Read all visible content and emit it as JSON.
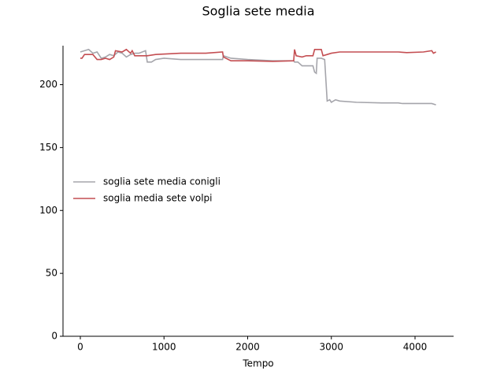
{
  "chart_data": {
    "type": "line",
    "title": "Soglia sete media",
    "xlabel": "Tempo",
    "xlim": [
      -207,
      4461
    ],
    "ylim": [
      0,
      231
    ],
    "xticks": [
      0,
      1000,
      2000,
      3000,
      4000
    ],
    "yticks": [
      0,
      50,
      100,
      150,
      200
    ],
    "legend": "center left",
    "series": [
      {
        "name": "soglia sete media conigli",
        "color": "#a5a5ab",
        "x": [
          0,
          100,
          150,
          200,
          250,
          300,
          350,
          400,
          450,
          500,
          550,
          600,
          650,
          700,
          780,
          800,
          850,
          900,
          1000,
          1200,
          1500,
          1700,
          1710,
          1800,
          2000,
          2300,
          2550,
          2560,
          2600,
          2650,
          2700,
          2780,
          2800,
          2820,
          2830,
          2880,
          2920,
          2950,
          2980,
          3000,
          3050,
          3100,
          3300,
          3600,
          3800,
          3850,
          4200,
          4250
        ],
        "values": [
          226,
          228,
          225,
          226,
          221,
          222,
          224,
          223,
          226,
          225,
          222,
          224,
          225,
          225,
          227,
          218,
          218,
          220,
          221,
          220,
          220,
          220,
          223,
          221,
          220,
          219,
          219,
          218,
          218,
          215,
          215,
          215,
          210,
          209,
          221,
          221,
          220,
          187,
          188,
          186,
          188,
          187,
          186,
          185.5,
          185.5,
          185,
          185,
          184
        ]
      },
      {
        "name": "soglia media sete volpi",
        "color": "#c44e52",
        "x": [
          0,
          20,
          50,
          150,
          200,
          250,
          300,
          350,
          400,
          420,
          500,
          550,
          600,
          620,
          650,
          700,
          800,
          900,
          1200,
          1500,
          1700,
          1710,
          1800,
          2000,
          2300,
          2550,
          2560,
          2580,
          2650,
          2700,
          2780,
          2800,
          2880,
          2900,
          2950,
          3000,
          3100,
          3500,
          3800,
          3900,
          4100,
          4200,
          4220,
          4250
        ],
        "values": [
          221,
          221,
          224,
          224,
          220,
          220,
          221,
          220,
          222,
          227,
          226,
          228,
          225,
          227,
          223,
          223,
          223,
          224,
          225,
          225,
          226,
          222,
          219,
          219,
          218.5,
          219,
          228,
          223,
          222,
          223,
          223,
          228,
          228,
          223,
          224,
          225,
          226,
          226,
          226,
          225.5,
          226,
          227,
          225,
          226
        ]
      }
    ]
  }
}
